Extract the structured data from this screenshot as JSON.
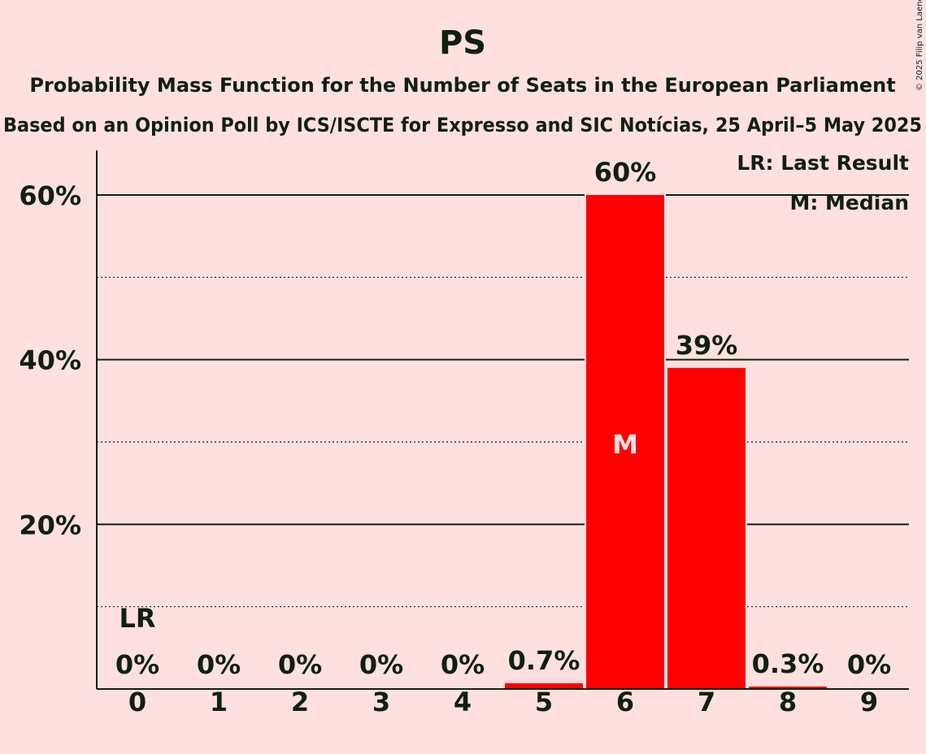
{
  "chart_data": {
    "type": "bar",
    "title": "PS",
    "subtitle1": "Probability Mass Function for the Number of Seats in the European Parliament",
    "subtitle2": "Based on an Opinion Poll by ICS/ISCTE for Expresso and SIC Notícias, 25 April–5 May 2025",
    "categories": [
      "0",
      "1",
      "2",
      "3",
      "4",
      "5",
      "6",
      "7",
      "8",
      "9"
    ],
    "values": [
      0,
      0,
      0,
      0,
      0,
      0.7,
      60,
      39,
      0.3,
      0
    ],
    "value_labels": [
      "0%",
      "0%",
      "0%",
      "0%",
      "0%",
      "0.7%",
      "60%",
      "39%",
      "0.3%",
      "0%"
    ],
    "ylim": [
      0,
      65
    ],
    "yticks": [
      20,
      40,
      60
    ],
    "ytick_labels": [
      "20%",
      "40%",
      "60%"
    ],
    "y_dotted_gridlines": [
      10,
      30,
      50
    ],
    "last_result_index": 0,
    "last_result_label": "LR",
    "median_index": 6,
    "median_label": "M",
    "legend": [
      "LR: Last Result",
      "M: Median"
    ],
    "legend_position": "top-right",
    "bar_color": "#ff0000",
    "background_color": "#ffe0e0",
    "text_color": "#102010"
  },
  "copyright": "© 2025 Filip van Laenen"
}
